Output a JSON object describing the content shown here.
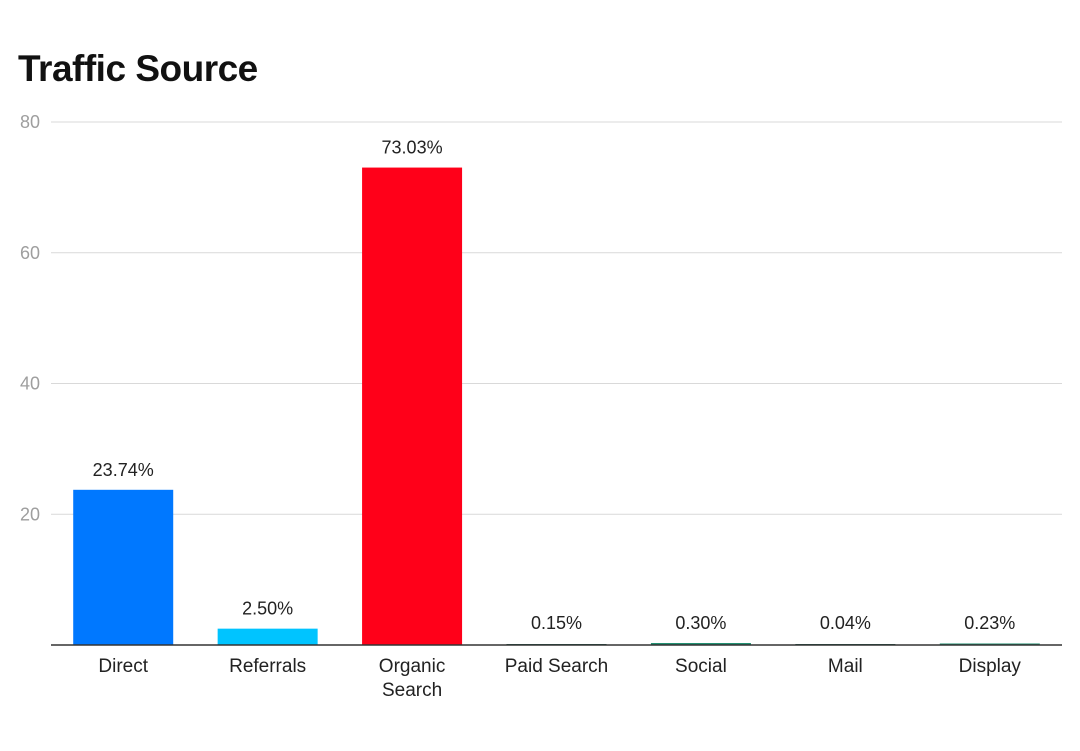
{
  "chart_data": {
    "type": "bar",
    "title": "Traffic Source",
    "xlabel": "",
    "ylabel": "",
    "ylim": [
      0,
      80
    ],
    "yticks": [
      20,
      40,
      60,
      80
    ],
    "grid": true,
    "legend": "none",
    "categories": [
      "Direct",
      "Referrals",
      "Organic Search",
      "Paid Search",
      "Social",
      "Mail",
      "Display"
    ],
    "category_lines": [
      [
        "Direct"
      ],
      [
        "Referrals"
      ],
      [
        "Organic",
        "Search"
      ],
      [
        "Paid Search"
      ],
      [
        "Social"
      ],
      [
        "Mail"
      ],
      [
        "Display"
      ]
    ],
    "values": [
      23.74,
      2.5,
      73.03,
      0.15,
      0.3,
      0.04,
      0.23
    ],
    "data_labels": [
      "23.74%",
      "2.50%",
      "73.03%",
      "0.15%",
      "0.30%",
      "0.04%",
      "0.23%"
    ],
    "colors": [
      "#0078ff",
      "#00c4ff",
      "#ff0019",
      "#1c5c4c",
      "#1a8c6c",
      "#1c5c4c",
      "#1a8c6c"
    ]
  }
}
